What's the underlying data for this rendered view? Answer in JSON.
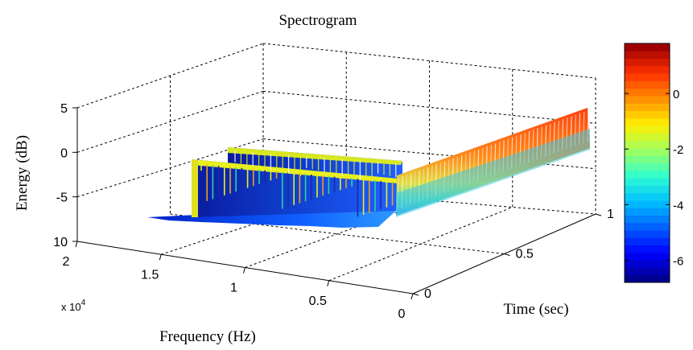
{
  "chart_data": {
    "type": "surface",
    "title": "Spectrogram",
    "xlabel": "Frequency (Hz)",
    "ylabel": "Time (sec)",
    "zlabel": "Energy (dB)",
    "x_ticks": [
      "2",
      "1.5",
      "1",
      "0.5",
      "0"
    ],
    "x_multiplier": "x 10",
    "x_multiplier_exp": "4",
    "y_ticks": [
      "0",
      "0.5",
      "1"
    ],
    "z_ticks": [
      "5",
      "0",
      "-5",
      "10"
    ],
    "xlim": [
      0,
      20000
    ],
    "ylim": [
      0,
      1
    ],
    "zlim": [
      -10,
      5
    ],
    "grid": true,
    "colorbar": {
      "ticks": [
        "0",
        "-2",
        "-4",
        "-6"
      ],
      "range": [
        -6.8,
        1.8
      ],
      "colors": [
        "#00008f",
        "#0000ff",
        "#0060ff",
        "#00c0ff",
        "#30ffcf",
        "#a0ff60",
        "#ffef00",
        "#ff8f00",
        "#ff3000",
        "#a00000"
      ]
    },
    "surface_regions": [
      {
        "name": "low-energy-floor",
        "freq_range": [
          4000,
          20000
        ],
        "time_range": [
          0,
          0.05
        ],
        "energy_db": -7
      },
      {
        "name": "near-wall",
        "freq_range": [
          4000,
          20000
        ],
        "time_range": [
          0.05,
          0.3
        ],
        "energy_db": -3
      },
      {
        "name": "far-wall",
        "freq_range": [
          4000,
          20000
        ],
        "time_range": [
          0.3,
          0.7
        ],
        "energy_db": -2
      },
      {
        "name": "high-energy-ridge",
        "freq_range": [
          0,
          4000
        ],
        "time_range": [
          0,
          1
        ],
        "energy_db": 0
      }
    ]
  }
}
